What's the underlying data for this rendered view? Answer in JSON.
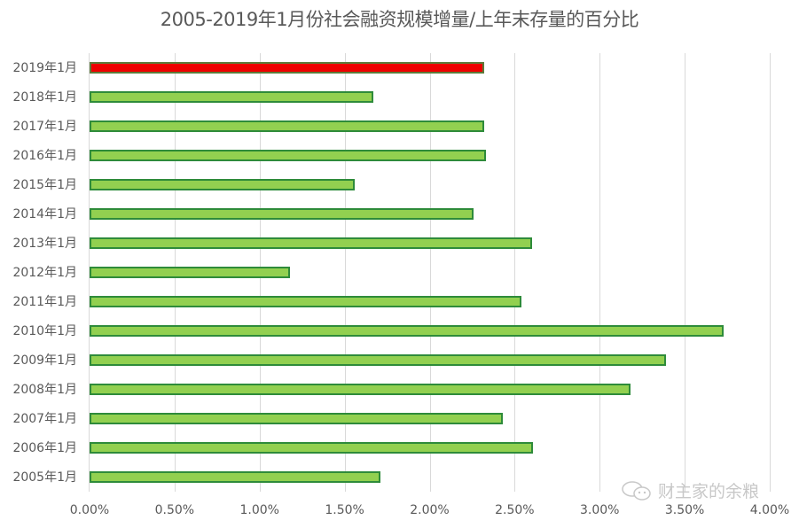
{
  "title": "2005-2019年1月份社会融资规模增量/上年末存量的百分比",
  "watermark": "财主家的余粮",
  "colors": {
    "bar": "#92d050",
    "bar_border": "#2e8b3a",
    "highlight": "#ee0000",
    "grid": "#d9d9d9",
    "text": "#595959"
  },
  "x_ticks": [
    "0.00%",
    "0.50%",
    "1.00%",
    "1.50%",
    "2.00%",
    "2.50%",
    "3.00%",
    "3.50%",
    "4.00%"
  ],
  "chart_data": {
    "type": "bar",
    "orientation": "horizontal",
    "title": "2005-2019年1月份社会融资规模增量/上年末存量的百分比",
    "xlabel": "",
    "ylabel": "",
    "xlim": [
      0,
      4.0
    ],
    "unit": "%",
    "grid": true,
    "legend": null,
    "categories": [
      "2019年1月",
      "2018年1月",
      "2017年1月",
      "2016年1月",
      "2015年1月",
      "2014年1月",
      "2013年1月",
      "2012年1月",
      "2011年1月",
      "2010年1月",
      "2009年1月",
      "2008年1月",
      "2007年1月",
      "2006年1月",
      "2005年1月"
    ],
    "values": [
      2.32,
      1.67,
      2.32,
      2.33,
      1.56,
      2.26,
      2.6,
      1.18,
      2.54,
      3.73,
      3.39,
      3.18,
      2.43,
      2.61,
      1.71
    ],
    "highlight": "2019年1月"
  }
}
